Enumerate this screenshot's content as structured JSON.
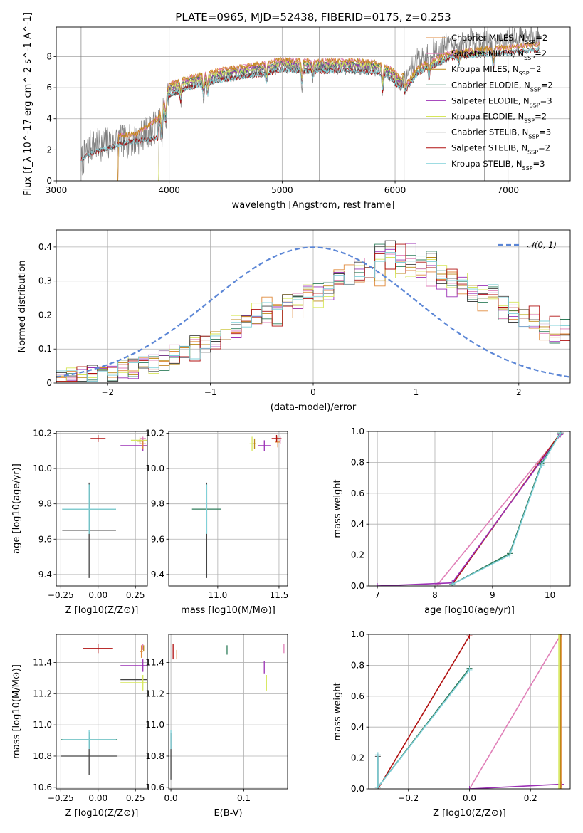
{
  "title": "PLATE=0965, MJD=52438, FIBERID=0175, z=0.253",
  "colors": {
    "Chabrier MILES": "#e08a3c",
    "Salpeter MILES": "#e07fb8",
    "Kroupa MILES": "#bc8a17",
    "Chabrier ELODIE": "#2e7d5b",
    "Salpeter ELODIE": "#9b30b5",
    "Kroupa ELODIE": "#d6e65a",
    "Chabrier STELIB": "#444444",
    "Salpeter STELIB": "#b01010",
    "Kroupa STELIB": "#7fd0d8",
    "data": "#7f7f7f",
    "normal": "#5b86d6"
  },
  "chart_data": [
    {
      "type": "line",
      "id": "spectrum",
      "title": "PLATE=0965, MJD=52438, FIBERID=0175, z=0.253",
      "xlabel": "wavelength [Angstrom, rest frame]",
      "ylabel": "Flux [f_λ 10^-17 erg cm^-2 s^-1 A^-1]",
      "xlim": [
        3000,
        7550
      ],
      "ylim": [
        0,
        9.9
      ],
      "xticks": [
        3000,
        4000,
        5000,
        6000,
        7000
      ],
      "yticks": [
        0,
        2,
        4,
        6,
        8
      ],
      "legend_position": "top-right",
      "legend": [
        {
          "name": "Chabrier MILES",
          "label": "Chabrier MILES, N_SSP=2"
        },
        {
          "name": "Salpeter MILES",
          "label": "Salpeter MILES, N_SSP=2"
        },
        {
          "name": "Kroupa MILES",
          "label": "Kroupa MILES, N_SSP=2"
        },
        {
          "name": "Chabrier ELODIE",
          "label": "Chabrier ELODIE, N_SSP=2"
        },
        {
          "name": "Salpeter ELODIE",
          "label": "Salpeter ELODIE, N_SSP=3"
        },
        {
          "name": "Kroupa ELODIE",
          "label": "Kroupa ELODIE, N_SSP=2"
        },
        {
          "name": "Chabrier STELIB",
          "label": "Chabrier STELIB, N_SSP=3"
        },
        {
          "name": "Salpeter STELIB",
          "label": "Salpeter STELIB, N_SSP=2"
        },
        {
          "name": "Kroupa STELIB",
          "label": "Kroupa STELIB, N_SSP=3"
        }
      ],
      "data_range": [
        3220,
        7280
      ],
      "model_ranges": {
        "MILES": [
          3540,
          7280
        ],
        "ELODIE": [
          3900,
          6800
        ],
        "STELIB": [
          3220,
          7280
        ]
      },
      "continuum": [
        [
          3220,
          1.2
        ],
        [
          3300,
          2.2
        ],
        [
          3500,
          2.5
        ],
        [
          3700,
          2.6
        ],
        [
          3900,
          3.6
        ],
        [
          4000,
          5.8
        ],
        [
          4200,
          6.3
        ],
        [
          4500,
          6.8
        ],
        [
          4800,
          7.1
        ],
        [
          5000,
          7.4
        ],
        [
          5300,
          7.3
        ],
        [
          5500,
          7.35
        ],
        [
          5700,
          7.3
        ],
        [
          5850,
          7.2
        ],
        [
          5950,
          6.9
        ],
        [
          6050,
          6.2
        ],
        [
          6200,
          7.8
        ],
        [
          6500,
          8.8
        ],
        [
          7000,
          9.1
        ],
        [
          7280,
          9.3
        ]
      ],
      "dips": [
        [
          3934,
          2.0
        ],
        [
          3969,
          1.6
        ],
        [
          4102,
          1.0
        ],
        [
          4304,
          1.2
        ],
        [
          4340,
          1.0
        ],
        [
          4861,
          1.0
        ],
        [
          5175,
          1.2
        ],
        [
          5270,
          0.6
        ],
        [
          5890,
          1.5
        ],
        [
          6300,
          1.1
        ],
        [
          6563,
          0.8
        ],
        [
          6870,
          1.5
        ]
      ],
      "noise_scale": 0.5
    },
    {
      "type": "step",
      "id": "residuals",
      "xlabel": "(data-model)/error",
      "ylabel": "Normed distribution",
      "xlim": [
        -2.5,
        2.5
      ],
      "ylim": [
        0,
        0.45
      ],
      "xticks": [
        -2,
        -1,
        0,
        1,
        2
      ],
      "yticks": [
        0,
        0.1,
        0.2,
        0.3,
        0.4
      ],
      "legend_position": "top-right",
      "normal_label": "𝒩(0, 1)",
      "bin_width": 0.1,
      "base_curve": [
        [
          -2.5,
          0.015
        ],
        [
          -2.0,
          0.03
        ],
        [
          -1.5,
          0.06
        ],
        [
          -1.0,
          0.12
        ],
        [
          -0.5,
          0.2
        ],
        [
          0.0,
          0.25
        ],
        [
          0.5,
          0.32
        ],
        [
          0.8,
          0.37
        ],
        [
          1.2,
          0.33
        ],
        [
          1.6,
          0.26
        ],
        [
          2.0,
          0.2
        ],
        [
          2.5,
          0.14
        ]
      ]
    },
    {
      "type": "errorbar",
      "id": "age-vs-Z",
      "xlabel": "Z [log10(Z/Z⊙)]",
      "ylabel": "age [log10(age/yr)]",
      "xlim": [
        -0.28,
        0.33
      ],
      "ylim": [
        9.335,
        10.21
      ],
      "xticks": [
        -0.25,
        0.0,
        0.25
      ],
      "xticklabels": [
        "−0.25",
        "0.00",
        "0.25"
      ],
      "yticks": [
        9.4,
        9.6,
        9.8,
        10.0,
        10.2
      ],
      "points": [
        {
          "s": "Chabrier STELIB",
          "x": -0.06,
          "y": 9.65,
          "xerr": 0.18,
          "yerr": 0.27
        },
        {
          "s": "Chabrier ELODIE",
          "x": -0.06,
          "y": 9.77,
          "xerr": 0.18,
          "yerr": 0.14
        },
        {
          "s": "Kroupa STELIB",
          "x": -0.06,
          "y": 9.77,
          "xerr": 0.18,
          "yerr": 0.14
        },
        {
          "s": "Salpeter STELIB",
          "x": 0.0,
          "y": 10.17,
          "xerr": 0.05,
          "yerr": 0.02
        },
        {
          "s": "Salpeter ELODIE",
          "x": 0.3,
          "y": 10.13,
          "xerr": 0.15,
          "yerr": 0.03
        },
        {
          "s": "Chabrier MILES",
          "x": 0.3,
          "y": 10.14,
          "xerr": 0.02,
          "yerr": 0.03
        },
        {
          "s": "Kroupa ELODIE",
          "x": 0.28,
          "y": 10.16,
          "xerr": 0.06,
          "yerr": 0.02
        },
        {
          "s": "Kroupa MILES",
          "x": 0.28,
          "y": 10.155,
          "xerr": 0.02,
          "yerr": 0.015
        },
        {
          "s": "Salpeter MILES",
          "x": 0.3,
          "y": 10.17,
          "xerr": 0.02,
          "yerr": 0.01
        }
      ]
    },
    {
      "type": "errorbar",
      "id": "age-vs-mass",
      "xlabel": "mass [log10(M/M⊙)]",
      "xlim": [
        10.6,
        11.57
      ],
      "ylim": [
        9.335,
        10.21
      ],
      "xticks": [
        11.0,
        11.5
      ],
      "xticklabels": [
        "11.0",
        "11.5"
      ],
      "yticks": [
        9.4,
        9.6,
        9.8,
        10.0,
        10.2
      ],
      "points": [
        {
          "s": "Chabrier STELIB",
          "x": 10.91,
          "y": 9.65,
          "xerr": 0.0,
          "yerr": 0.27
        },
        {
          "s": "Chabrier ELODIE",
          "x": 10.91,
          "y": 9.77,
          "xerr": 0.12,
          "yerr": 0.14
        },
        {
          "s": "Kroupa STELIB",
          "x": 10.91,
          "y": 9.77,
          "xerr": 0.0,
          "yerr": 0.14
        },
        {
          "s": "Kroupa ELODIE",
          "x": 11.28,
          "y": 10.14,
          "xerr": 0.02,
          "yerr": 0.04
        },
        {
          "s": "Kroupa MILES",
          "x": 11.3,
          "y": 10.14,
          "xerr": 0.01,
          "yerr": 0.03
        },
        {
          "s": "Salpeter ELODIE",
          "x": 11.38,
          "y": 10.13,
          "xerr": 0.05,
          "yerr": 0.03
        },
        {
          "s": "Chabrier MILES",
          "x": 11.49,
          "y": 10.15,
          "xerr": 0.02,
          "yerr": 0.03
        },
        {
          "s": "Salpeter STELIB",
          "x": 11.48,
          "y": 10.17,
          "xerr": 0.04,
          "yerr": 0.02
        },
        {
          "s": "Salpeter MILES",
          "x": 11.51,
          "y": 10.16,
          "xerr": 0.005,
          "yerr": 0.02
        }
      ]
    },
    {
      "type": "line",
      "id": "weight-vs-age",
      "xlabel": "age [log10(age/yr)]",
      "ylabel": "mass weight",
      "xlim": [
        6.85,
        10.35
      ],
      "ylim": [
        0,
        1.0
      ],
      "xticks": [
        7,
        8,
        9,
        10
      ],
      "yticks": [
        0,
        0.2,
        0.4,
        0.6,
        0.8,
        1.0
      ],
      "lines": [
        {
          "s": "Salpeter MILES",
          "x": [
            8.05,
            10.2
          ],
          "y": [
            0.01,
            0.99
          ]
        },
        {
          "s": "Kroupa ELODIE",
          "x": [
            8.3,
            10.18
          ],
          "y": [
            0.01,
            0.99
          ]
        },
        {
          "s": "Chabrier MILES",
          "x": [
            8.3,
            10.18
          ],
          "y": [
            0.01,
            0.99
          ]
        },
        {
          "s": "Kroupa MILES",
          "x": [
            8.3,
            10.18
          ],
          "y": [
            0.01,
            0.99
          ]
        },
        {
          "s": "Salpeter STELIB",
          "x": [
            8.3,
            10.18
          ],
          "y": [
            0.01,
            0.99
          ]
        },
        {
          "s": "Salpeter ELODIE",
          "x": [
            7.0,
            8.3,
            10.18
          ],
          "y": [
            0.0,
            0.02,
            0.98
          ]
        },
        {
          "s": "Chabrier STELIB",
          "x": [
            8.3,
            9.3,
            9.85,
            10.18
          ],
          "y": [
            0.01,
            0.21,
            0.79,
            0.99
          ]
        },
        {
          "s": "Chabrier ELODIE",
          "x": [
            8.3,
            9.3,
            9.85,
            10.18
          ],
          "y": [
            0.01,
            0.21,
            0.79,
            0.99
          ]
        },
        {
          "s": "Kroupa STELIB",
          "x": [
            8.3,
            9.3,
            9.85,
            10.18
          ],
          "y": [
            0.01,
            0.2,
            0.78,
            0.99
          ]
        }
      ]
    },
    {
      "type": "errorbar",
      "id": "mass-vs-Z",
      "xlabel": "Z [log10(Z/Z⊙)]",
      "ylabel": "mass [log10(M/M⊙)]",
      "xlim": [
        -0.28,
        0.33
      ],
      "ylim": [
        10.59,
        11.58
      ],
      "xticks": [
        -0.25,
        0.0,
        0.25
      ],
      "xticklabels": [
        "−0.25",
        "0.00",
        "0.25"
      ],
      "yticks": [
        10.6,
        10.8,
        11.0,
        11.2,
        11.4
      ],
      "points": [
        {
          "s": "Chabrier STELIB",
          "x": -0.06,
          "y": 10.8,
          "xerr": 0.19,
          "yerr": 0.12
        },
        {
          "s": "Chabrier ELODIE",
          "x": -0.06,
          "y": 10.905,
          "xerr": 0.19,
          "yerr": 0.05
        },
        {
          "s": "Kroupa STELIB",
          "x": -0.06,
          "y": 10.905,
          "xerr": 0.18,
          "yerr": 0.06
        },
        {
          "s": "Salpeter STELIB",
          "x": 0.0,
          "y": 11.49,
          "xerr": 0.1,
          "yerr": 0.03
        },
        {
          "s": "Chabrier MILES",
          "x": 0.29,
          "y": 11.47,
          "xerr": 0.01,
          "yerr": 0.04
        },
        {
          "s": "Salpeter ELODIE",
          "x": 0.3,
          "y": 11.38,
          "xerr": 0.15,
          "yerr": 0.04
        },
        {
          "s": "Chabrier STELIB",
          "x": 0.3,
          "y": 11.29,
          "xerr": 0.15,
          "yerr": 0.0
        },
        {
          "s": "Kroupa ELODIE",
          "x": 0.3,
          "y": 11.27,
          "xerr": 0.15,
          "yerr": 0.05
        },
        {
          "s": "Salpeter MILES",
          "x": 0.3,
          "y": 11.5,
          "xerr": 0.0,
          "yerr": 0.02
        },
        {
          "s": "Kroupa MILES",
          "x": 0.305,
          "y": 11.49,
          "xerr": 0.0,
          "yerr": 0.02
        }
      ]
    },
    {
      "type": "errorbar",
      "id": "mass-vs-EBV",
      "xlabel": "E(B-V)",
      "xlim": [
        -0.003,
        0.16
      ],
      "ylim": [
        10.59,
        11.58
      ],
      "xticks": [
        0.0,
        0.1
      ],
      "xticklabels": [
        "0.0",
        "0.1"
      ],
      "yticks": [
        10.6,
        10.8,
        11.0,
        11.2,
        11.4
      ],
      "points": [
        {
          "s": "Chabrier STELIB",
          "x": 0.0,
          "y": 10.8,
          "xerr": 0.0,
          "yerr": 0.15
        },
        {
          "s": "Kroupa STELIB",
          "x": 0.0,
          "y": 10.905,
          "xerr": 0.0,
          "yerr": 0.06
        },
        {
          "s": "Salpeter STELIB",
          "x": 0.003,
          "y": 11.47,
          "xerr": 0.0,
          "yerr": 0.05
        },
        {
          "s": "Chabrier MILES",
          "x": 0.008,
          "y": 11.45,
          "xerr": 0.0,
          "yerr": 0.03
        },
        {
          "s": "Chabrier ELODIE",
          "x": 0.077,
          "y": 11.48,
          "xerr": 0.0,
          "yerr": 0.03
        },
        {
          "s": "Salpeter ELODIE",
          "x": 0.128,
          "y": 11.37,
          "xerr": 0.0,
          "yerr": 0.04
        },
        {
          "s": "Kroupa ELODIE",
          "x": 0.131,
          "y": 11.27,
          "xerr": 0.0,
          "yerr": 0.05
        },
        {
          "s": "Salpeter MILES",
          "x": 0.155,
          "y": 11.49,
          "xerr": 0.0,
          "yerr": 0.03
        }
      ]
    },
    {
      "type": "line",
      "id": "weight-vs-Z",
      "xlabel": "Z [log10(Z/Z⊙)]",
      "ylabel": "mass weight",
      "xlim": [
        -0.33,
        0.33
      ],
      "ylim": [
        0,
        1.0
      ],
      "xticks": [
        -0.2,
        0.0,
        0.2
      ],
      "xticklabels": [
        "−0.2",
        "0.0",
        "0.2"
      ],
      "yticks": [
        0,
        0.2,
        0.4,
        0.6,
        0.8,
        1.0
      ],
      "lines": [
        {
          "s": "Salpeter STELIB",
          "x": [
            -0.3,
            0.0
          ],
          "y": [
            0.0,
            0.99
          ]
        },
        {
          "s": "Chabrier STELIB",
          "x": [
            -0.3,
            -0.3,
            0.0
          ],
          "y": [
            0.21,
            0.01,
            0.78
          ]
        },
        {
          "s": "Chabrier ELODIE",
          "x": [
            -0.3,
            0.0
          ],
          "y": [
            0.01,
            0.78
          ]
        },
        {
          "s": "Kroupa STELIB",
          "x": [
            -0.3,
            -0.3,
            0.0
          ],
          "y": [
            0.22,
            0.01,
            0.77
          ]
        },
        {
          "s": "Salpeter MILES",
          "x": [
            0.0,
            0.3
          ],
          "y": [
            0.0,
            1.0
          ]
        },
        {
          "s": "Salpeter ELODIE",
          "x": [
            0.0,
            0.3
          ],
          "y": [
            0.0,
            0.03
          ]
        },
        {
          "s": "Kroupa ELODIE",
          "x": [
            0.293,
            0.293
          ],
          "y": [
            0.0,
            1.0
          ]
        },
        {
          "s": "Kroupa MILES",
          "x": [
            0.298,
            0.298
          ],
          "y": [
            0.0,
            1.0
          ]
        },
        {
          "s": "Chabrier MILES",
          "x": [
            0.302,
            0.302
          ],
          "y": [
            0.0,
            1.0
          ]
        }
      ]
    }
  ]
}
